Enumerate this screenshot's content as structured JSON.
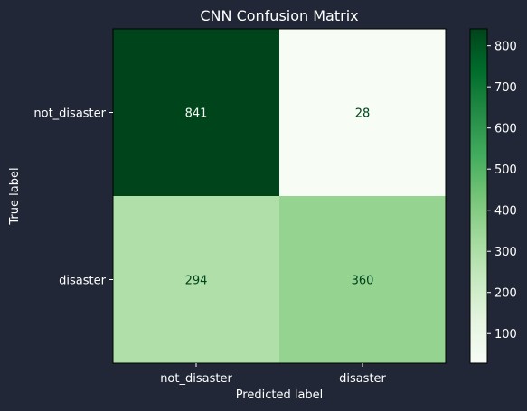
{
  "chart_data": {
    "type": "heatmap",
    "title": "CNN Confusion Matrix",
    "xlabel": "Predicted label",
    "ylabel": "True label",
    "x_categories": [
      "not_disaster",
      "disaster"
    ],
    "y_categories": [
      "not_disaster",
      "disaster"
    ],
    "values": [
      [
        841,
        28
      ],
      [
        294,
        360
      ]
    ],
    "colormap": "Greens",
    "colorbar": {
      "min": 28,
      "max": 841,
      "ticks": [
        100,
        200,
        300,
        400,
        500,
        600,
        700,
        800
      ]
    },
    "colors": {
      "background": "#212736",
      "text": "#ffffff",
      "frame": "#000000"
    }
  }
}
